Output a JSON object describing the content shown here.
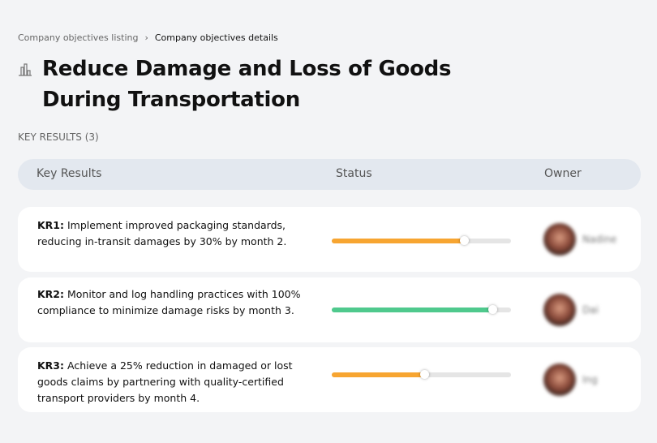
{
  "breadcrumb": {
    "parent": "Company objectives listing",
    "separator": "›",
    "current": "Company objectives details"
  },
  "page": {
    "icon": "building-chart-icon",
    "title": "Reduce Damage and Loss of Goods During Transportation"
  },
  "key_results_label": "KEY RESULTS (3)",
  "table": {
    "headers": {
      "key_results": "Key Results",
      "status": "Status",
      "owner": "Owner"
    }
  },
  "rows": [
    {
      "code": "KR1:",
      "text": " Implement improved packaging standards, reducing in-transit damages by 30% by month 2.",
      "progress": 0.74,
      "color": "#f7a531",
      "owner": "Nadine"
    },
    {
      "code": "KR2:",
      "text": " Monitor and log handling practices with 100% compliance to minimize damage risks by month 3.",
      "progress": 0.9,
      "color": "#4fc98d",
      "owner": "Dai"
    },
    {
      "code": "KR3:",
      "text": " Achieve a 25% reduction in damaged or lost goods claims by partnering with quality-certified transport providers by month 4.",
      "progress": 0.52,
      "color": "#f7a531",
      "owner": "Ing"
    }
  ]
}
